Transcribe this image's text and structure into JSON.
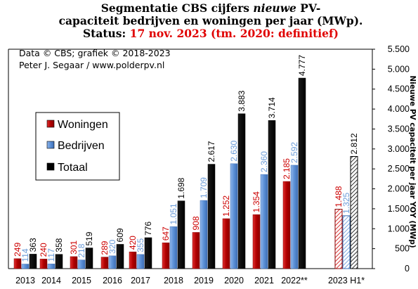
{
  "title": {
    "line1_pre": "Segmentatie CBS cijfers ",
    "line1_em": "nieuwe",
    "line1_post": " PV-",
    "line2": "capaciteit bedrijven en woningen per jaar (MWp).",
    "line3_status": "Status: ",
    "line3_red": "17 nov. 2023 (tm. 2020: definitief)"
  },
  "credits": {
    "line1": "Data © CBS; grafiek © 2018-2023",
    "line2": "Peter J. Segaar / www.polderpv.nl"
  },
  "chart_data": {
    "type": "bar",
    "title": "Segmentatie CBS cijfers nieuwe PV-capaciteit bedrijven en woningen per jaar (MWp). Status: 17 nov. 2023 (tm. 2020: definitief)",
    "xlabel": "",
    "ylabel": "Nieuwe PV capaciteit per jaar YOY (MWp)",
    "ylim": [
      0,
      5500
    ],
    "yticks": [
      0,
      500,
      1000,
      1500,
      2000,
      2500,
      3000,
      3500,
      4000,
      4500,
      5000,
      5500
    ],
    "ytick_labels": [
      "0",
      "500",
      "1.000",
      "1.500",
      "2.000",
      "2.500",
      "3.000",
      "3.500",
      "4.000",
      "4.500",
      "5.000",
      "5.500"
    ],
    "y_axis_side": "right",
    "grid": false,
    "legend_position": "left-middle",
    "categories": [
      "2013",
      "2014",
      "2015",
      "2016",
      "2017",
      "2018",
      "2019",
      "2020",
      "2021",
      "2022**",
      "2023 H1*"
    ],
    "series": [
      {
        "name": "Woningen",
        "color": "#cc0000",
        "label_color": "#cc0000",
        "values": [
          249,
          240,
          301,
          289,
          420,
          647,
          908,
          1252,
          1354,
          2185,
          1488
        ],
        "value_labels": [
          "249",
          "240",
          "301",
          "289",
          "420",
          "647",
          "908",
          "1.252",
          "1.354",
          "2.185",
          "1.488"
        ]
      },
      {
        "name": "Bedrijven",
        "color": "#5b8fd6",
        "label_color": "#6a9bd8",
        "values": [
          114,
          117,
          218,
          320,
          355,
          1051,
          1709,
          2630,
          2360,
          2592,
          1325
        ],
        "value_labels": [
          "114",
          "117",
          "218",
          "320",
          "355",
          "1.051",
          "1.709",
          "2.630",
          "2.360",
          "2.592",
          "1.325"
        ]
      },
      {
        "name": "Totaal",
        "color": "#000000",
        "label_color": "#000000",
        "values": [
          363,
          358,
          519,
          609,
          776,
          1698,
          2617,
          3883,
          3714,
          4777,
          2812
        ],
        "value_labels": [
          "363",
          "358",
          "519",
          "609",
          "776",
          "1.698",
          "2.617",
          "3.883",
          "3.714",
          "4.777",
          "2.812"
        ]
      }
    ],
    "hatched_categories": [
      "2023 H1*"
    ]
  }
}
